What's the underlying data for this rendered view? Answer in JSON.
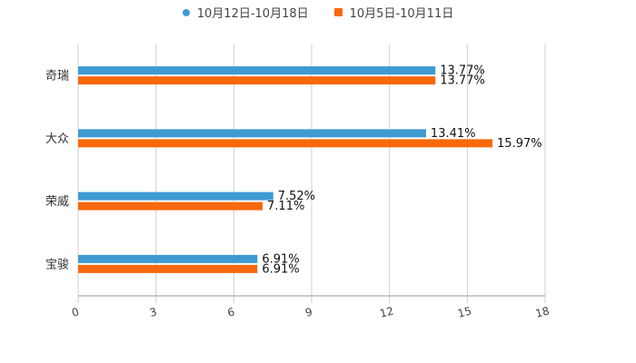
{
  "chart_data": {
    "type": "bar",
    "orientation": "horizontal",
    "title": "",
    "xlabel": "",
    "ylabel": "",
    "xlim": [
      0,
      18
    ],
    "x_ticks": [
      0,
      3,
      6,
      9,
      12,
      15,
      18
    ],
    "grid": true,
    "legend_position": "top-center",
    "categories": [
      "奇瑞",
      "大众",
      "荣威",
      "宝骏"
    ],
    "series": [
      {
        "name": "10月12日-10月18日",
        "color": "#3d9bd1",
        "marker": "circle",
        "values": [
          13.77,
          13.41,
          7.52,
          6.91
        ],
        "labels": [
          "13.77%",
          "13.41%",
          "7.52%",
          "6.91%"
        ]
      },
      {
        "name": "10月5日-10月11日",
        "color": "#f7690c",
        "marker": "square",
        "values": [
          13.77,
          15.97,
          7.11,
          6.91
        ],
        "labels": [
          "13.77%",
          "15.97%",
          "7.11%",
          "6.91%"
        ]
      }
    ]
  }
}
